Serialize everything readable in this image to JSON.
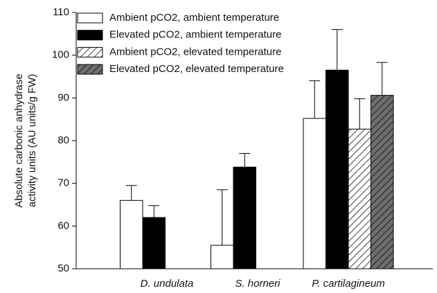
{
  "chart_data": {
    "type": "bar",
    "ylabel": [
      "Absolute carbonic anhydrase",
      "activity units (AU units/g FW)"
    ],
    "categories": [
      "D. undulata",
      "S. horneri",
      "P. cartilagineum"
    ],
    "series": [
      {
        "name": "Ambient pCO2, ambient temperature",
        "color": "#ffffff",
        "values": [
          66,
          55.5,
          85.2
        ],
        "errors": [
          3.5,
          13,
          8.8
        ]
      },
      {
        "name": "Elevated pCO2, ambient temperature",
        "color": "#000000",
        "values": [
          62,
          73.8,
          96.5
        ],
        "errors": [
          2.8,
          3.2,
          9.5
        ]
      },
      {
        "name": "Ambient pCO2, elevated temperature",
        "color": "#ffffff",
        "hatch": true,
        "values": [
          null,
          null,
          82.7
        ],
        "errors": [
          null,
          null,
          7.1
        ]
      },
      {
        "name": "Elevated pCO2, elevated temperature",
        "color": "#6e6e6e",
        "hatch": true,
        "values": [
          null,
          null,
          90.6
        ],
        "errors": [
          null,
          null,
          7.7
        ]
      }
    ],
    "ylim": [
      50,
      110
    ],
    "yticks": [
      50,
      60,
      70,
      80,
      90,
      100,
      110
    ]
  }
}
